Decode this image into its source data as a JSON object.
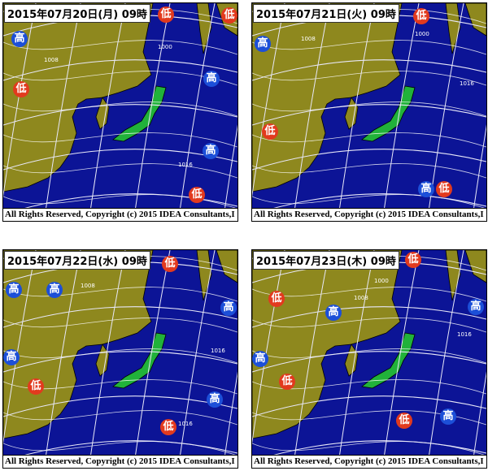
{
  "colors": {
    "land": "#8e881e",
    "sea": "#0c1496",
    "japan": "#21b23a",
    "low": "#e23a1e",
    "high": "#1c4fd8",
    "lines": "#e8e8f8"
  },
  "footer": "All Rights Reserved, Copyright (c) 2015 IDEA Consultants,I",
  "panels": [
    {
      "title": "2015年07月20日(月) 09時",
      "markers": [
        {
          "type": "low",
          "label": "低"
        },
        {
          "type": "low",
          "label": "低"
        },
        {
          "type": "low",
          "label": "低"
        },
        {
          "type": "low",
          "label": "低"
        },
        {
          "type": "high",
          "label": "高"
        },
        {
          "type": "high",
          "label": "高"
        },
        {
          "type": "high",
          "label": "高"
        }
      ],
      "isobars": [
        "1000",
        "1016",
        "1008"
      ]
    },
    {
      "title": "2015年07月21日(火) 09時",
      "markers": [
        {
          "type": "low",
          "label": "低"
        },
        {
          "type": "high",
          "label": "高"
        },
        {
          "type": "low",
          "label": "低"
        },
        {
          "type": "high",
          "label": "高"
        },
        {
          "type": "low",
          "label": "低"
        }
      ],
      "isobars": [
        "1000",
        "1016",
        "1008"
      ]
    },
    {
      "title": "2015年07月22日(水) 09時",
      "markers": [
        {
          "type": "low",
          "label": "低"
        },
        {
          "type": "high",
          "label": "高"
        },
        {
          "type": "high",
          "label": "高"
        },
        {
          "type": "high",
          "label": "高"
        },
        {
          "type": "high",
          "label": "高"
        },
        {
          "type": "high",
          "label": "高"
        },
        {
          "type": "low",
          "label": "低"
        },
        {
          "type": "low",
          "label": "低"
        }
      ],
      "isobars": [
        "1008",
        "1016",
        "1016"
      ]
    },
    {
      "title": "2015年07月23日(木) 09時",
      "markers": [
        {
          "type": "low",
          "label": "低"
        },
        {
          "type": "low",
          "label": "低"
        },
        {
          "type": "high",
          "label": "高"
        },
        {
          "type": "high",
          "label": "高"
        },
        {
          "type": "high",
          "label": "高"
        },
        {
          "type": "low",
          "label": "低"
        },
        {
          "type": "high",
          "label": "高"
        },
        {
          "type": "low",
          "label": "低"
        }
      ],
      "isobars": [
        "1000",
        "1008",
        "1016"
      ]
    }
  ]
}
